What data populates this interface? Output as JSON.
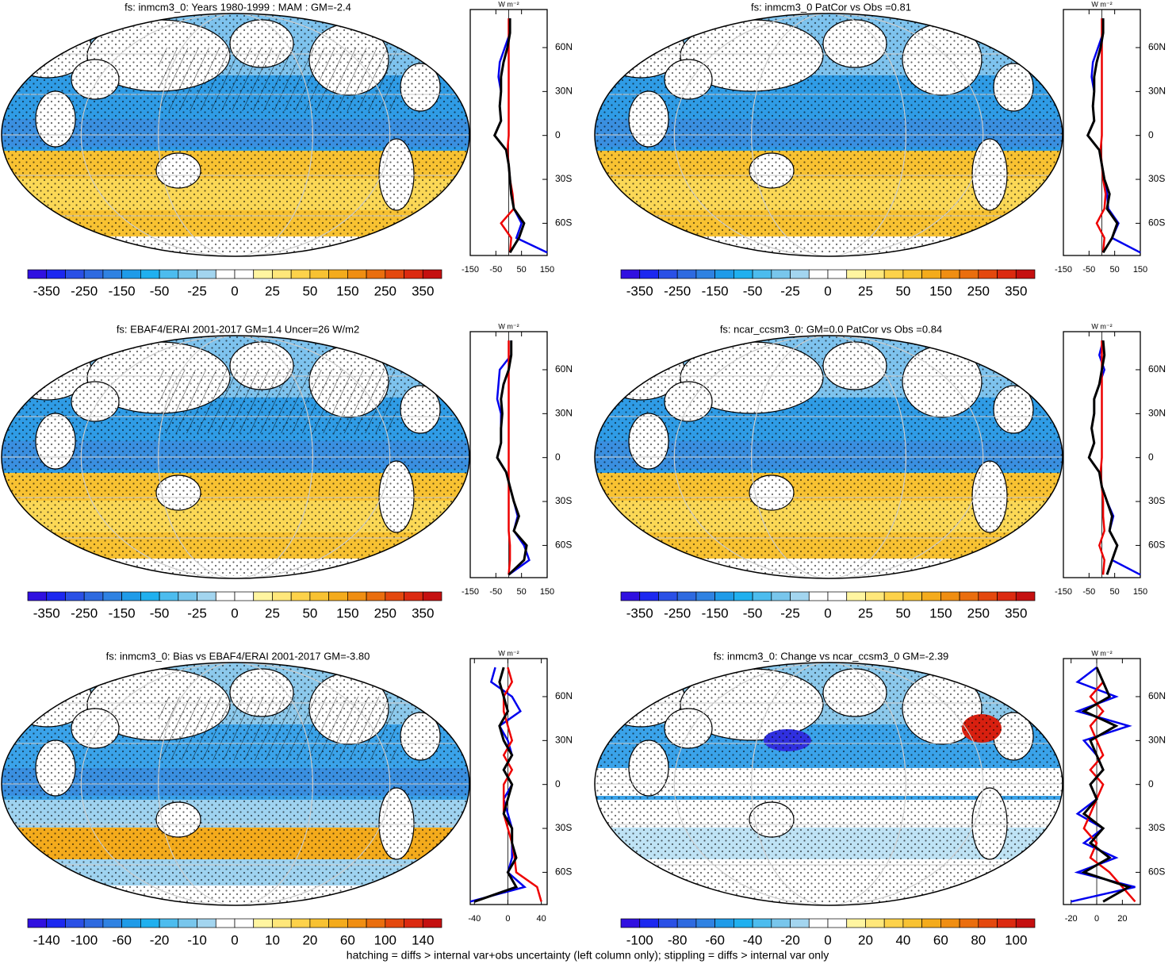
{
  "footnote": "hatching = diffs > internal var+obs uncertainty (left column only); stippling = diffs > internal var only",
  "colorbar_colors": [
    "#3010e0",
    "#1c28f0",
    "#2a50e6",
    "#2e6ae0",
    "#2f82e2",
    "#1f9be8",
    "#20b0ef",
    "#4cbcee",
    "#78c6ec",
    "#a3d5ef",
    "#ffffff",
    "#ffffff",
    "#fff5a0",
    "#ffe77a",
    "#fdd24a",
    "#f8c232",
    "#f4ab1c",
    "#f08e12",
    "#ea6e0e",
    "#e4480e",
    "#dc2a10",
    "#c51010"
  ],
  "chart_data": [
    {
      "type": "line",
      "title": "fs: inmcm3_0: Years 1980-1999 : MAM : GM=-2.4",
      "x_label": "W m⁻²",
      "colorbar_levels": [
        -350,
        -250,
        -150,
        -50,
        -25,
        0,
        25,
        50,
        150,
        250,
        350
      ],
      "xlim": [
        -150,
        150
      ],
      "xticks": [
        -150,
        -50,
        50,
        150
      ],
      "ylim": [
        -82,
        86
      ],
      "yticks": [
        {
          "value": 60,
          "label": "60N"
        },
        {
          "value": 30,
          "label": "30N"
        },
        0,
        {
          "value": -30,
          "label": "30S"
        },
        {
          "value": -60,
          "label": "60S"
        }
      ],
      "y": [
        -80,
        -70,
        -60,
        -50,
        -40,
        -30,
        -20,
        -10,
        0,
        10,
        20,
        30,
        40,
        50,
        60,
        70,
        80
      ],
      "series": [
        {
          "color": "#0000ee",
          "values": [
            150,
            30,
            50,
            20,
            10,
            5,
            0,
            -10,
            -55,
            -30,
            -35,
            -30,
            -40,
            -35,
            -15,
            5,
            5
          ]
        },
        {
          "color": "#ee0000",
          "values": [
            5,
            10,
            -30,
            20,
            15,
            5,
            0,
            -5,
            0,
            0,
            0,
            0,
            0,
            0,
            0,
            0,
            0
          ]
        },
        {
          "color": "#000000",
          "values": [
            5,
            40,
            60,
            20,
            10,
            5,
            0,
            -10,
            -55,
            -30,
            -35,
            -30,
            -30,
            -20,
            -5,
            5,
            5
          ]
        }
      ]
    },
    {
      "type": "line",
      "title": "fs: inmcm3_0 PatCor vs Obs =0.81",
      "x_label": "W m⁻²",
      "colorbar_levels": [
        -350,
        -250,
        -150,
        -50,
        -25,
        0,
        25,
        50,
        150,
        250,
        350
      ],
      "xlim": [
        -150,
        150
      ],
      "xticks": [
        -150,
        -50,
        50,
        150
      ],
      "ylim": [
        -82,
        86
      ],
      "yticks": [
        {
          "value": 60,
          "label": "60N"
        },
        {
          "value": 30,
          "label": "30N"
        },
        0,
        {
          "value": -30,
          "label": "30S"
        },
        {
          "value": -60,
          "label": "60S"
        }
      ],
      "y": [
        -80,
        -70,
        -60,
        -50,
        -40,
        -30,
        -20,
        -10,
        0,
        10,
        20,
        30,
        40,
        50,
        60,
        70,
        80
      ],
      "series": [
        {
          "color": "#0000ee",
          "values": [
            150,
            40,
            65,
            25,
            20,
            10,
            0,
            -10,
            -55,
            -30,
            -35,
            -30,
            -40,
            -35,
            -15,
            5,
            5
          ]
        },
        {
          "color": "#ee0000",
          "values": [
            5,
            10,
            -20,
            10,
            15,
            5,
            0,
            -5,
            0,
            0,
            0,
            0,
            0,
            0,
            0,
            0,
            0
          ]
        },
        {
          "color": "#000000",
          "values": [
            5,
            40,
            60,
            20,
            30,
            10,
            0,
            -10,
            -55,
            -30,
            -35,
            -30,
            -30,
            -20,
            -5,
            5,
            5
          ]
        }
      ]
    },
    {
      "type": "line",
      "title": "fs: EBAF4/ERAI 2001-2017 GM=1.4 Uncer=26 W/m2",
      "x_label": "W m⁻²",
      "colorbar_levels": [
        -350,
        -250,
        -150,
        -50,
        -25,
        0,
        25,
        50,
        150,
        250,
        350
      ],
      "xlim": [
        -150,
        150
      ],
      "xticks": [
        -150,
        -50,
        50,
        150
      ],
      "ylim": [
        -82,
        86
      ],
      "yticks": [
        {
          "value": 60,
          "label": "60N"
        },
        {
          "value": 30,
          "label": "30N"
        },
        0,
        {
          "value": -30,
          "label": "30S"
        },
        {
          "value": -60,
          "label": "60S"
        }
      ],
      "y": [
        -80,
        -70,
        -60,
        -50,
        -40,
        -30,
        -20,
        -10,
        0,
        10,
        20,
        30,
        40,
        50,
        60,
        70,
        80
      ],
      "series": [
        {
          "color": "#0000ee",
          "values": [
            0,
            80,
            60,
            20,
            35,
            20,
            5,
            -10,
            -45,
            -30,
            -30,
            -30,
            -45,
            -40,
            -35,
            10,
            10
          ]
        },
        {
          "color": "#ee0000",
          "values": [
            0,
            5,
            5,
            0,
            0,
            0,
            0,
            0,
            0,
            0,
            0,
            0,
            0,
            0,
            0,
            0,
            0
          ]
        },
        {
          "color": "#000000",
          "values": [
            0,
            60,
            70,
            20,
            40,
            20,
            5,
            -10,
            -45,
            -30,
            -30,
            -25,
            -30,
            -20,
            0,
            10,
            10
          ]
        }
      ]
    },
    {
      "type": "line",
      "title": "fs: ncar_ccsm3_0: GM=0.0 PatCor vs Obs =0.84",
      "x_label": "W m⁻²",
      "colorbar_levels": [
        -350,
        -250,
        -150,
        -50,
        -25,
        0,
        25,
        50,
        150,
        250,
        350
      ],
      "xlim": [
        -150,
        150
      ],
      "xticks": [
        -150,
        -50,
        50,
        150
      ],
      "ylim": [
        -82,
        86
      ],
      "yticks": [
        {
          "value": 60,
          "label": "60N"
        },
        {
          "value": 30,
          "label": "30N"
        },
        0,
        {
          "value": -30,
          "label": "30S"
        },
        {
          "value": -60,
          "label": "60S"
        }
      ],
      "y": [
        -80,
        -70,
        -60,
        -50,
        -40,
        -30,
        -20,
        -10,
        0,
        10,
        20,
        30,
        40,
        50,
        60,
        70,
        80
      ],
      "series": [
        {
          "color": "#0000ee",
          "values": [
            150,
            40,
            60,
            30,
            45,
            20,
            0,
            -10,
            -50,
            -30,
            -40,
            -30,
            -30,
            -10,
            10,
            -10,
            5
          ]
        },
        {
          "color": "#ee0000",
          "values": [
            5,
            10,
            -10,
            10,
            5,
            5,
            0,
            -5,
            0,
            0,
            0,
            0,
            0,
            0,
            0,
            0,
            0
          ]
        },
        {
          "color": "#000000",
          "values": [
            20,
            40,
            60,
            30,
            40,
            20,
            0,
            -10,
            -50,
            -30,
            -40,
            -30,
            -30,
            -10,
            0,
            10,
            5
          ]
        }
      ]
    },
    {
      "type": "line",
      "title": "fs: inmcm3_0: Bias vs EBAF4/ERAI 2001-2017 GM=-3.80",
      "x_label": "W m⁻²",
      "colorbar_levels": [
        -140,
        -100,
        -60,
        -20,
        -10,
        0,
        10,
        20,
        60,
        100,
        140
      ],
      "xlim": [
        -45,
        47
      ],
      "xticks": [
        -40,
        0,
        40
      ],
      "ylim": [
        -82,
        86
      ],
      "yticks": [
        {
          "value": 60,
          "label": "60N"
        },
        {
          "value": 30,
          "label": "30N"
        },
        0,
        {
          "value": -30,
          "label": "30S"
        },
        {
          "value": -60,
          "label": "60S"
        }
      ],
      "y": [
        -80,
        -70,
        -60,
        -50,
        -40,
        -30,
        -20,
        -10,
        0,
        10,
        20,
        30,
        40,
        50,
        60,
        70,
        80
      ],
      "series": [
        {
          "color": "#0000ee",
          "values": [
            -45,
            20,
            0,
            5,
            5,
            5,
            0,
            -5,
            5,
            -5,
            5,
            0,
            -10,
            15,
            5,
            -20,
            -15
          ]
        },
        {
          "color": "#ee0000",
          "values": [
            40,
            35,
            10,
            8,
            5,
            0,
            -5,
            -5,
            -5,
            5,
            -5,
            5,
            0,
            -5,
            -5,
            5,
            0
          ]
        },
        {
          "color": "#000000",
          "values": [
            -40,
            10,
            0,
            10,
            5,
            5,
            -5,
            0,
            5,
            -5,
            5,
            -5,
            -10,
            0,
            -5,
            -10,
            -5
          ]
        }
      ]
    },
    {
      "type": "line",
      "title": "fs: inmcm3_0: Change vs ncar_ccsm3_0 GM=-2.39",
      "x_label": "W m⁻²",
      "colorbar_levels": [
        -100,
        -80,
        -60,
        -40,
        -20,
        0,
        20,
        40,
        60,
        80,
        100
      ],
      "xlim": [
        -26,
        34
      ],
      "xticks": [
        -20,
        0,
        20
      ],
      "ylim": [
        -82,
        86
      ],
      "yticks": [
        {
          "value": 60,
          "label": "60N"
        },
        {
          "value": 30,
          "label": "30N"
        },
        0,
        {
          "value": -30,
          "label": "30S"
        },
        {
          "value": -60,
          "label": "60S"
        }
      ],
      "y": [
        -80,
        -70,
        -60,
        -50,
        -40,
        -30,
        -20,
        -10,
        0,
        10,
        20,
        30,
        40,
        50,
        60,
        70,
        80
      ],
      "series": [
        {
          "color": "#0000ee",
          "values": [
            -20,
            30,
            -15,
            15,
            -10,
            5,
            -15,
            0,
            -5,
            5,
            0,
            -10,
            25,
            -15,
            15,
            -15,
            0
          ]
        },
        {
          "color": "#ee0000",
          "values": [
            30,
            20,
            10,
            -5,
            0,
            -10,
            -5,
            0,
            5,
            -5,
            5,
            0,
            -5,
            5,
            -5,
            5,
            0
          ]
        },
        {
          "color": "#000000",
          "values": [
            5,
            25,
            -10,
            10,
            -5,
            5,
            -10,
            0,
            -5,
            5,
            0,
            -5,
            15,
            -10,
            10,
            5,
            0
          ]
        }
      ]
    }
  ]
}
